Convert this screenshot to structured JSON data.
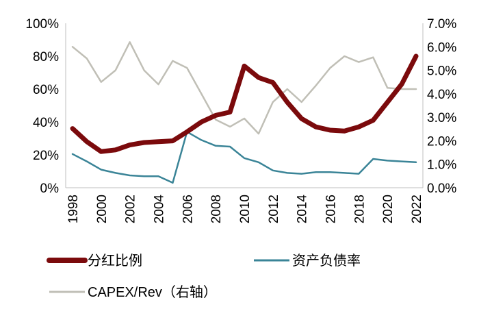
{
  "chart_data": {
    "type": "line",
    "x": [
      1998,
      1999,
      2000,
      2001,
      2002,
      2003,
      2004,
      2005,
      2006,
      2007,
      2008,
      2009,
      2010,
      2011,
      2012,
      2013,
      2014,
      2015,
      2016,
      2017,
      2018,
      2019,
      2020,
      2021,
      2022
    ],
    "x_tick_labels": [
      "1998",
      "2000",
      "2002",
      "2004",
      "2006",
      "2008",
      "2010",
      "2012",
      "2014",
      "2016",
      "2018",
      "2020",
      "2022"
    ],
    "y_left": {
      "ylim": [
        0,
        100
      ],
      "tick_labels": [
        "0%",
        "20%",
        "40%",
        "60%",
        "80%",
        "100%"
      ]
    },
    "y_right": {
      "ylim": [
        0,
        7
      ],
      "tick_labels": [
        "0.0%",
        "1.0%",
        "2.0%",
        "3.0%",
        "4.0%",
        "5.0%",
        "6.0%",
        "7.0%"
      ]
    },
    "series": [
      {
        "name": "分红比例",
        "axis": "left",
        "color": "#7b0a0c",
        "values": [
          36,
          28,
          22,
          23,
          26,
          27.5,
          28,
          28.5,
          34,
          40,
          44,
          46,
          74,
          67,
          64,
          52,
          42,
          37,
          35,
          34.5,
          37,
          41,
          52,
          63,
          80
        ]
      },
      {
        "name": "资产负债率",
        "axis": "left",
        "color": "#3a8497",
        "values": [
          20.5,
          16,
          11,
          9,
          7.5,
          7,
          7,
          3,
          34,
          29,
          25.5,
          25,
          18,
          15.5,
          10.5,
          9,
          8.5,
          9.5,
          9.5,
          9,
          8.5,
          17.5,
          16.5,
          16,
          15.5
        ]
      },
      {
        "name": "CAPEX/Rev（右轴）",
        "axis": "right",
        "color": "#c0bfb6",
        "values": [
          6.0,
          5.5,
          4.5,
          5.0,
          6.2,
          5.0,
          4.4,
          5.4,
          5.1,
          4.0,
          2.9,
          2.6,
          2.95,
          2.3,
          3.65,
          4.2,
          3.65,
          4.35,
          5.1,
          5.6,
          5.35,
          5.55,
          4.25,
          4.2,
          4.2
        ]
      }
    ],
    "grid": false,
    "legend_position": "bottom"
  }
}
